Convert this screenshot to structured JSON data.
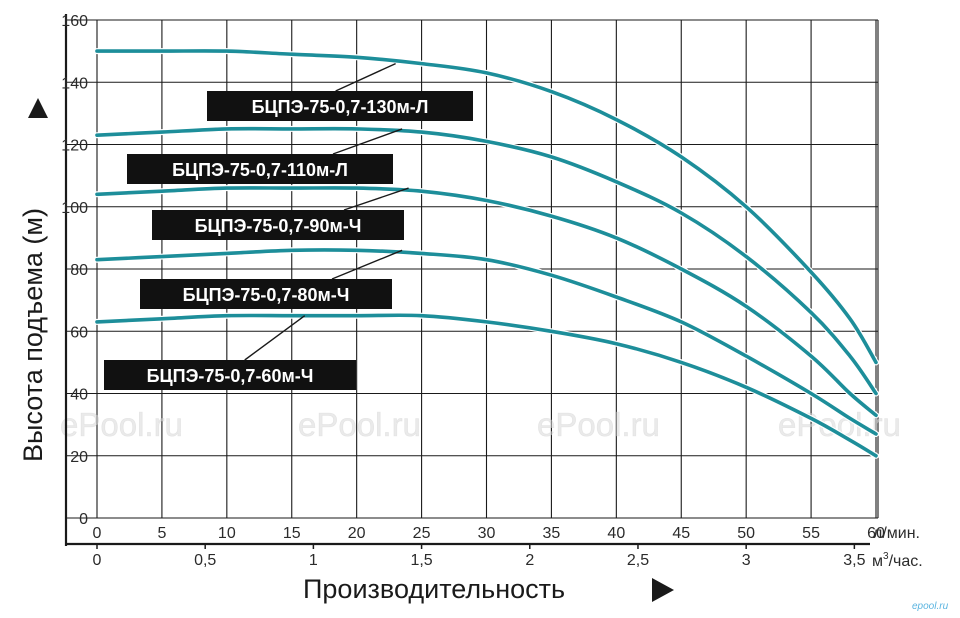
{
  "chart_data": {
    "type": "line",
    "x_primary": {
      "unit": "л/мин.",
      "ticks": [
        "0",
        "5",
        "10",
        "15",
        "20",
        "25",
        "30",
        "35",
        "40",
        "45",
        "50",
        "55",
        "60"
      ],
      "range": [
        0,
        60
      ]
    },
    "x_secondary": {
      "unit_base": "м",
      "unit_sup": "3",
      "unit_rest": "/час.",
      "ticks": [
        {
          "value": 0,
          "label": "0"
        },
        {
          "value": 0.5,
          "label": "0,5"
        },
        {
          "value": 1,
          "label": "1"
        },
        {
          "value": 1.5,
          "label": "1,5"
        },
        {
          "value": 2,
          "label": "2"
        },
        {
          "value": 2.5,
          "label": "2,5"
        },
        {
          "value": 3,
          "label": "3"
        },
        {
          "value": 3.5,
          "label": "3,5"
        }
      ]
    },
    "y_axis": {
      "ticks": [
        "0",
        "20",
        "40",
        "60",
        "80",
        "100",
        "120",
        "140",
        "160"
      ],
      "range": [
        0,
        160
      ]
    },
    "xlabel": "Производительность",
    "ylabel": "Высота подъема (м)",
    "grid": true,
    "series": [
      {
        "name": "БЦПЭ-75-0,7-130м-Л",
        "x": [
          0,
          5,
          10,
          15,
          20,
          25,
          30,
          35,
          40,
          45,
          50,
          55,
          58,
          60
        ],
        "y": [
          150,
          150,
          150,
          149,
          148,
          146,
          143,
          137,
          128,
          116,
          100,
          79,
          64,
          50
        ],
        "label_anchor": {
          "x": 23,
          "y": 146
        }
      },
      {
        "name": "БЦПЭ-75-0,7-110м-Л",
        "x": [
          0,
          5,
          10,
          15,
          20,
          25,
          30,
          35,
          40,
          45,
          50,
          55,
          58,
          60
        ],
        "y": [
          123,
          124,
          125,
          125,
          125,
          124,
          121,
          116,
          108,
          98,
          84,
          66,
          52,
          40
        ],
        "label_anchor": {
          "x": 23.5,
          "y": 125
        }
      },
      {
        "name": "БЦПЭ-75-0,7-90м-Ч",
        "x": [
          0,
          5,
          10,
          15,
          20,
          25,
          30,
          35,
          40,
          45,
          50,
          55,
          58,
          60
        ],
        "y": [
          104,
          105,
          106,
          106,
          106,
          105,
          102,
          97,
          90,
          80,
          68,
          52,
          40,
          33
        ],
        "label_anchor": {
          "x": 24,
          "y": 106
        }
      },
      {
        "name": "БЦПЭ-75-0,7-80м-Ч",
        "x": [
          0,
          5,
          10,
          15,
          20,
          25,
          30,
          35,
          40,
          45,
          50,
          55,
          58,
          60
        ],
        "y": [
          83,
          84,
          85,
          86,
          86,
          85,
          83,
          78,
          71,
          63,
          52,
          40,
          32,
          27
        ],
        "label_anchor": {
          "x": 23.5,
          "y": 86
        }
      },
      {
        "name": "БЦПЭ-75-0,7-60м-Ч",
        "x": [
          0,
          5,
          10,
          15,
          20,
          25,
          30,
          35,
          40,
          45,
          50,
          55,
          58,
          60
        ],
        "y": [
          63,
          64,
          65,
          65,
          65,
          65,
          63,
          60,
          56,
          50,
          42,
          32,
          25,
          20
        ],
        "label_anchor": {
          "x": 16,
          "y": 65
        }
      }
    ],
    "colors": {
      "curve": "#1d8e9a",
      "grid": "#1a1a1a",
      "label_bg": "#111111",
      "label_fg": "#ffffff",
      "arrow": "#1a1a1a"
    }
  },
  "watermarks": [
    "ePool.ru",
    "ePool.ru",
    "ePool.ru",
    "ePool.ru"
  ],
  "corner_logo": "epool.ru"
}
